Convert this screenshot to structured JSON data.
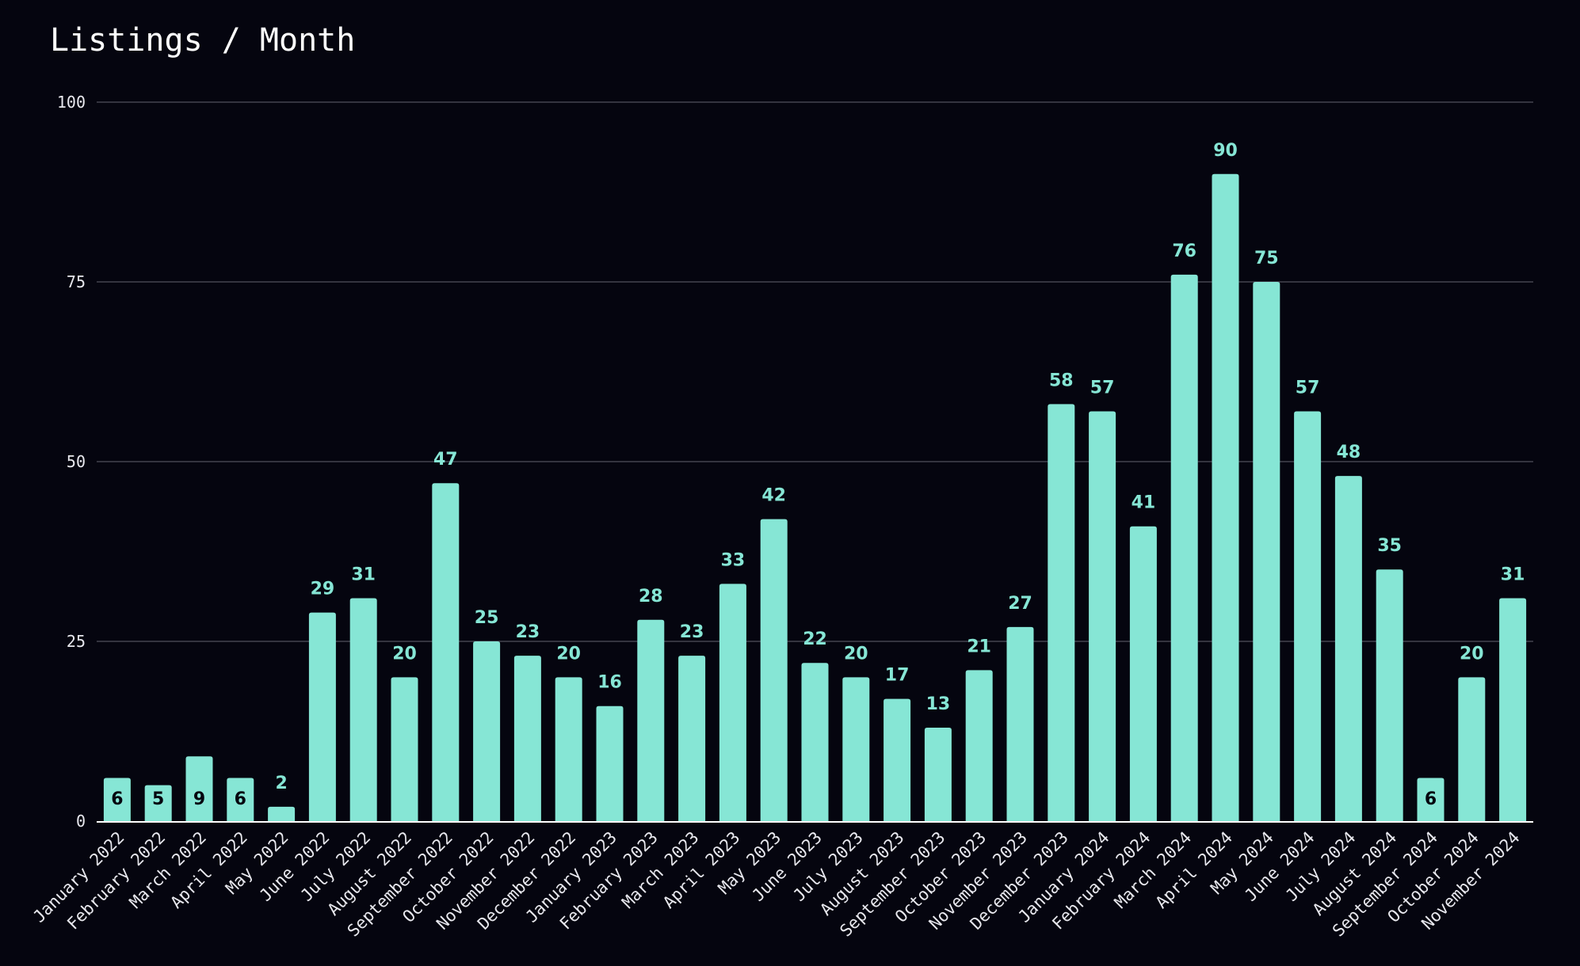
{
  "colors": {
    "background": "#05050f",
    "bar": "#86e6d5",
    "gridline": "#34343f",
    "axis": "#ffffff",
    "label_outside": "#86e6d5",
    "label_inside": "#05050f",
    "text": "#e8e8ee"
  },
  "chart_data": {
    "type": "bar",
    "title": "Listings / Month",
    "xlabel": "",
    "ylabel": "",
    "ylim": [
      0,
      100
    ],
    "yticks": [
      0,
      25,
      50,
      75,
      100
    ],
    "grid": true,
    "legend": "none",
    "categories": [
      "January 2022",
      "February 2022",
      "March 2022",
      "April 2022",
      "May 2022",
      "June 2022",
      "July 2022",
      "August 2022",
      "September 2022",
      "October 2022",
      "November 2022",
      "December 2022",
      "January 2023",
      "February 2023",
      "March 2023",
      "April 2023",
      "May 2023",
      "June 2023",
      "July 2023",
      "August 2023",
      "September 2023",
      "October 2023",
      "November 2023",
      "December 2023",
      "January 2024",
      "February 2024",
      "March 2024",
      "April 2024",
      "May 2024",
      "June 2024",
      "July 2024",
      "August 2024",
      "September 2024",
      "October 2024",
      "November 2024"
    ],
    "values": [
      6,
      5,
      9,
      6,
      2,
      29,
      31,
      20,
      47,
      25,
      23,
      20,
      16,
      28,
      23,
      33,
      42,
      22,
      20,
      17,
      13,
      21,
      27,
      58,
      57,
      41,
      76,
      90,
      75,
      57,
      48,
      35,
      6,
      20,
      31
    ]
  }
}
